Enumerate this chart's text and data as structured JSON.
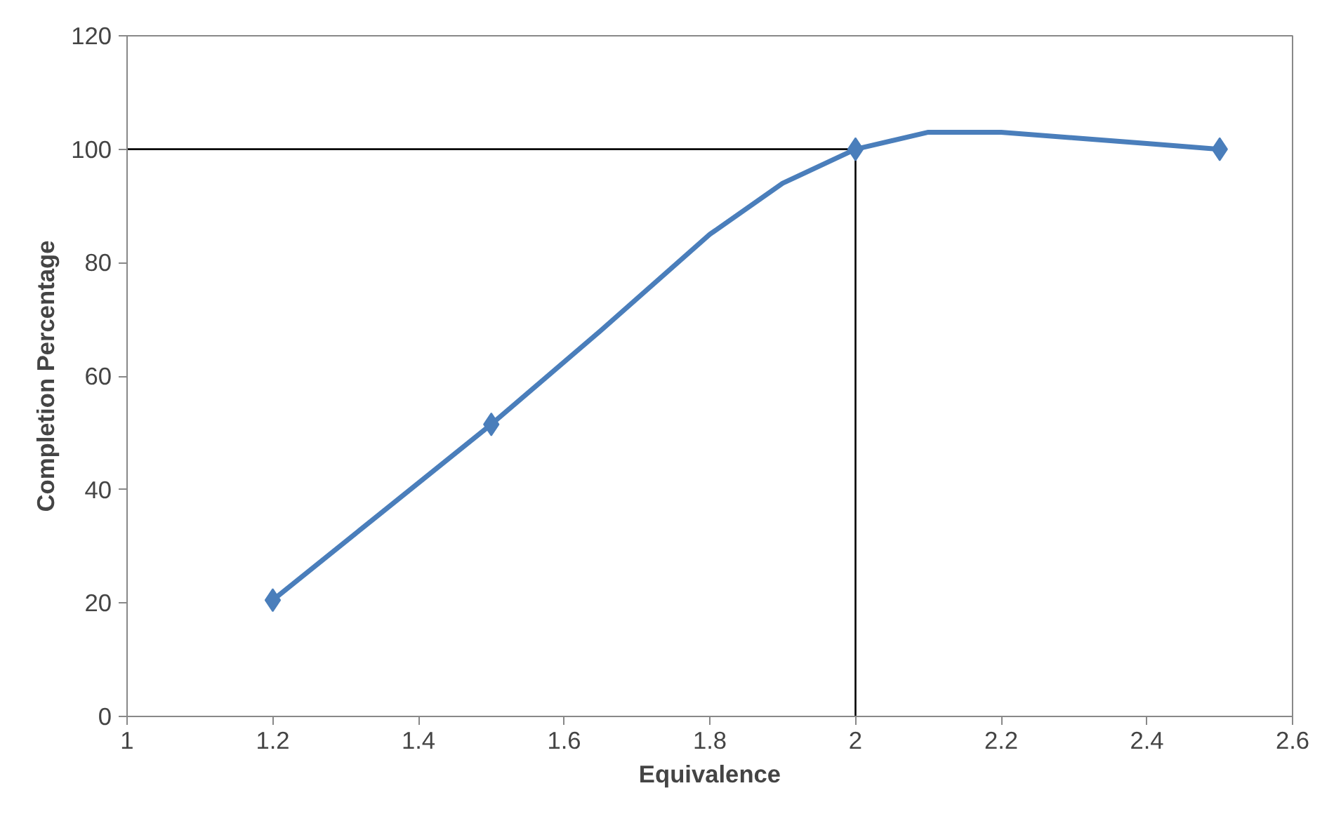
{
  "chart_data": {
    "type": "line",
    "xlabel": "Equivalence",
    "ylabel": "Completion Percentage",
    "x": [
      1.2,
      1.5,
      2,
      2.5
    ],
    "series": [
      {
        "marker": "none",
        "color": "#4a7ebb",
        "x": [
          1.2,
          1.35,
          1.5,
          1.65,
          1.8,
          1.9,
          2,
          2.1,
          2.2,
          2.3,
          2.4,
          2.5
        ],
        "values": [
          20.5,
          36,
          51.5,
          68,
          85,
          94,
          100,
          103,
          103,
          102,
          101,
          100
        ]
      },
      {
        "type": "scatter",
        "color": "#4a7ebb",
        "values": [
          20.5,
          51.5,
          100,
          100
        ]
      }
    ],
    "xlim": [
      1,
      2.6
    ],
    "xticks": [
      1,
      1.2,
      1.4,
      1.6,
      1.8,
      2,
      2.2,
      2.4,
      2.6
    ],
    "ylim": [
      0,
      120
    ],
    "yticks": [
      0,
      20,
      40,
      60,
      80,
      100,
      120
    ],
    "ref_lines": [
      {
        "axis": "y",
        "value": 100,
        "color": "#000000"
      },
      {
        "axis": "x",
        "value": 2,
        "color": "#000000"
      }
    ],
    "grid": false,
    "marker": "diamond",
    "line_style": "solid"
  }
}
